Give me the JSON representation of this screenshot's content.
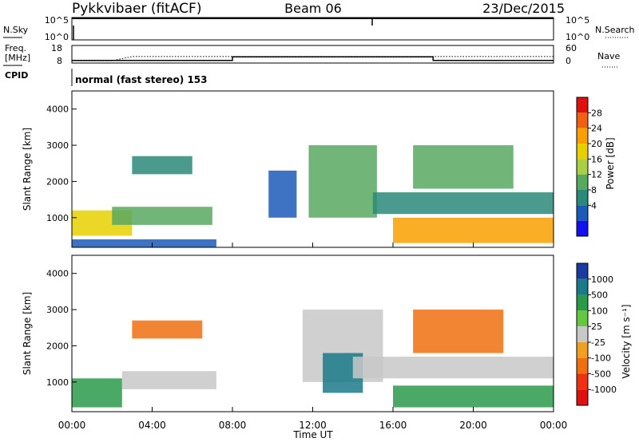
{
  "header": {
    "station": "Pykkvibaer (fitACF)",
    "beam": "Beam 06",
    "date": "23/Dec/2015"
  },
  "strips": {
    "nsky_label": "N.Sky",
    "nsky_ticks": [
      "10^5",
      "10^0"
    ],
    "nsearch_label": "N.Search",
    "nsearch_ticks": [
      "10^5",
      "10^0"
    ],
    "freq_label_1": "Freq.",
    "freq_label_2": "[MHz]",
    "freq_ticks": [
      "18",
      "8"
    ],
    "nave_label": "Nave",
    "nave_ticks": [
      "60",
      "0"
    ],
    "cpid_label": "CPID",
    "cpid_value": "normal (fast stereo) 153"
  },
  "axes": {
    "ylabel": "Slant Range [km]",
    "xlabel": "Time UT",
    "yticks": [
      "4000",
      "3000",
      "2000",
      "1000"
    ],
    "xticks": [
      "00:00",
      "04:00",
      "08:00",
      "12:00",
      "16:00",
      "20:00",
      "00:00"
    ]
  },
  "colorbars": {
    "power": {
      "label": "Power [dB]",
      "ticks": [
        "28",
        "24",
        "20",
        "16",
        "12",
        "8",
        "4"
      ],
      "colors": [
        "#e01010",
        "#f06010",
        "#f8a000",
        "#e8d000",
        "#a8d040",
        "#58a860",
        "#2a8a7a",
        "#1c5ab8",
        "#1010f0"
      ]
    },
    "velocity": {
      "label": "Velocity [m s⁻¹]",
      "ticks": [
        "1000",
        "500",
        "100",
        "25",
        "-25",
        "-100",
        "-500",
        "-1000"
      ],
      "colors": [
        "#1a3aa0",
        "#1a7a8a",
        "#2a9a4a",
        "#66c840",
        "#c8c8c8",
        "#f0a020",
        "#f07010",
        "#f03010",
        "#e01010"
      ]
    }
  },
  "chart_data": [
    {
      "type": "line",
      "title": "N.Sky / N.Search",
      "x_range": [
        0,
        24
      ],
      "nsky": 60000,
      "nsearch": 50000
    },
    {
      "type": "line",
      "title": "Freq. / Nave",
      "x_range": [
        0,
        24
      ],
      "freq_mhz": [
        {
          "x": 0,
          "y": 9.5
        },
        {
          "x": 8,
          "y": 9.5
        },
        {
          "x": 8,
          "y": 11.5
        },
        {
          "x": 18,
          "y": 11.5
        },
        {
          "x": 18,
          "y": 9.5
        },
        {
          "x": 24,
          "y": 9.5
        }
      ],
      "nave": [
        {
          "x": 0,
          "y": 8
        },
        {
          "x": 2,
          "y": 8
        },
        {
          "x": 2.5,
          "y": 15
        },
        {
          "x": 3,
          "y": 22
        },
        {
          "x": 24,
          "y": 22
        }
      ]
    },
    {
      "type": "heatmap",
      "title": "Power",
      "x_label": "Time UT",
      "y_label": "Slant Range [km]",
      "x_range": [
        0,
        24
      ],
      "y_range": [
        180,
        4500
      ],
      "z_unit": "dB",
      "z_range": [
        0,
        32
      ],
      "patches": [
        {
          "t0": 0.0,
          "t1": 3.0,
          "r0": 500,
          "r1": 1200,
          "v": 22
        },
        {
          "t0": 0.0,
          "t1": 7.2,
          "r0": 180,
          "r1": 400,
          "v": 6
        },
        {
          "t0": 2.0,
          "t1": 7.0,
          "r0": 800,
          "r1": 1300,
          "v": 14
        },
        {
          "t0": 3.0,
          "t1": 6.0,
          "r0": 2200,
          "r1": 2700,
          "v": 7
        },
        {
          "t0": 9.8,
          "t1": 11.2,
          "r0": 1000,
          "r1": 2300,
          "v": 5
        },
        {
          "t0": 11.8,
          "t1": 15.2,
          "r0": 1000,
          "r1": 3000,
          "v": 12
        },
        {
          "t0": 15.0,
          "t1": 24.0,
          "r0": 1100,
          "r1": 1700,
          "v": 8
        },
        {
          "t0": 16.0,
          "t1": 24.0,
          "r0": 300,
          "r1": 1000,
          "v": 24
        },
        {
          "t0": 17.0,
          "t1": 22.0,
          "r0": 1800,
          "r1": 3000,
          "v": 14
        }
      ]
    },
    {
      "type": "heatmap",
      "title": "Velocity",
      "x_label": "Time UT",
      "y_label": "Slant Range [km]",
      "x_range": [
        0,
        24
      ],
      "y_range": [
        180,
        4500
      ],
      "z_unit": "m s-1",
      "z_range": [
        -1000,
        1000
      ],
      "patches": [
        {
          "t0": 0.0,
          "t1": 2.5,
          "r0": 300,
          "r1": 1100,
          "v": 200
        },
        {
          "t0": 2.5,
          "t1": 7.2,
          "r0": 800,
          "r1": 1300,
          "v": 0
        },
        {
          "t0": 3.0,
          "t1": 6.5,
          "r0": 2200,
          "r1": 2700,
          "v": -150
        },
        {
          "t0": 11.5,
          "t1": 15.5,
          "r0": 1000,
          "r1": 3000,
          "v": 0
        },
        {
          "t0": 12.5,
          "t1": 14.5,
          "r0": 700,
          "r1": 1800,
          "v": 700
        },
        {
          "t0": 16.0,
          "t1": 24.0,
          "r0": 300,
          "r1": 900,
          "v": 120
        },
        {
          "t0": 17.0,
          "t1": 21.5,
          "r0": 1800,
          "r1": 3000,
          "v": -300
        },
        {
          "t0": 14.0,
          "t1": 24.0,
          "r0": 1100,
          "r1": 1700,
          "v": 0
        }
      ]
    }
  ]
}
